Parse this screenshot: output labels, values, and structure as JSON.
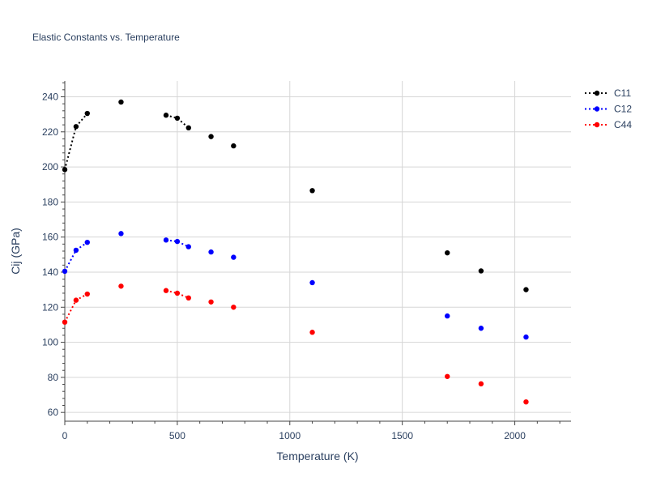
{
  "chart_data": {
    "type": "scatter",
    "title": "Elastic Constants vs. Temperature",
    "xlabel": "Temperature (K)",
    "ylabel": "Cij (GPa)",
    "xlim": [
      0,
      2250
    ],
    "ylim": [
      55,
      249
    ],
    "xticks": [
      "0",
      "500",
      "1000",
      "1500",
      "2000"
    ],
    "xtick_values": [
      0,
      500,
      1000,
      1500,
      2000
    ],
    "yticks": [
      "60",
      "80",
      "100",
      "120",
      "140",
      "160",
      "180",
      "200",
      "220",
      "240"
    ],
    "ytick_values": [
      60,
      80,
      100,
      120,
      140,
      160,
      180,
      200,
      220,
      240
    ],
    "grid": true,
    "legend": "top-right",
    "series": [
      {
        "name": "C11",
        "color": "#000000",
        "points": [
          [
            0,
            198.5
          ],
          [
            50,
            223
          ],
          [
            100,
            230.5
          ],
          [
            250,
            237
          ],
          [
            450,
            229.5
          ],
          [
            500,
            227.8
          ],
          [
            550,
            222.3
          ],
          [
            650,
            217.3
          ],
          [
            750,
            212
          ],
          [
            1100,
            186.5
          ],
          [
            1700,
            151
          ],
          [
            1850,
            140.7
          ],
          [
            2050,
            130
          ]
        ],
        "dotted_segments": [
          [
            0,
            2
          ],
          [
            4,
            6
          ]
        ]
      },
      {
        "name": "C12",
        "color": "#0000ff",
        "points": [
          [
            0,
            140.5
          ],
          [
            50,
            152.5
          ],
          [
            100,
            157
          ],
          [
            250,
            162
          ],
          [
            450,
            158.3
          ],
          [
            500,
            157.5
          ],
          [
            550,
            154.5
          ],
          [
            650,
            151.5
          ],
          [
            750,
            148.5
          ],
          [
            1100,
            134
          ],
          [
            1700,
            115
          ],
          [
            1850,
            108
          ],
          [
            2050,
            103
          ]
        ],
        "dotted_segments": [
          [
            0,
            2
          ],
          [
            4,
            6
          ]
        ]
      },
      {
        "name": "C44",
        "color": "#ff0000",
        "points": [
          [
            0,
            111.5
          ],
          [
            50,
            124
          ],
          [
            100,
            127.5
          ],
          [
            250,
            132
          ],
          [
            450,
            129.5
          ],
          [
            500,
            128
          ],
          [
            550,
            125.3
          ],
          [
            650,
            123
          ],
          [
            750,
            120
          ],
          [
            1100,
            105.7
          ],
          [
            1700,
            80.5
          ],
          [
            1850,
            76.3
          ],
          [
            2050,
            66
          ]
        ],
        "dotted_segments": [
          [
            0,
            2
          ],
          [
            4,
            6
          ]
        ]
      }
    ]
  }
}
